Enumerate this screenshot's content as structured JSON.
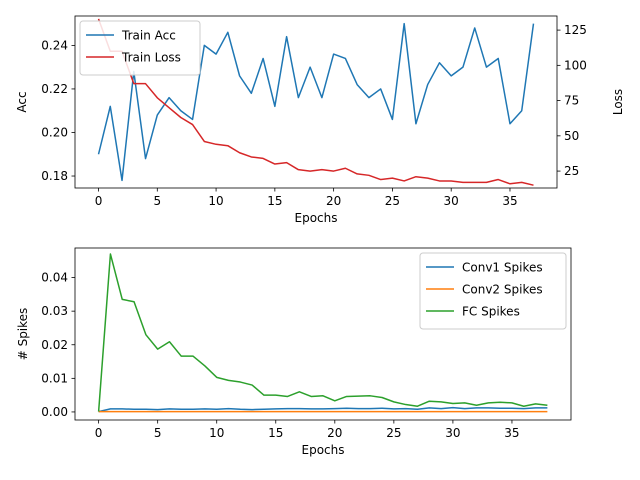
{
  "chart_data": [
    {
      "type": "line",
      "xlabel": "Epochs",
      "ylabel": "Acc",
      "y2label": "Loss",
      "xlim": [
        -2,
        39
      ],
      "ylim": [
        0.1745,
        0.2535
      ],
      "y2lim": [
        13,
        135
      ],
      "xticks": [
        0,
        5,
        10,
        15,
        20,
        25,
        30,
        35
      ],
      "yticks": [
        0.18,
        0.2,
        0.22,
        0.24
      ],
      "y2ticks": [
        25,
        50,
        75,
        100,
        125
      ],
      "legend": "top-left",
      "x": [
        0,
        1,
        2,
        3,
        4,
        5,
        6,
        7,
        8,
        9,
        10,
        11,
        12,
        13,
        14,
        15,
        16,
        17,
        18,
        19,
        20,
        21,
        22,
        23,
        24,
        25,
        26,
        27,
        28,
        29,
        30,
        31,
        32,
        33,
        34,
        35,
        36,
        37
      ],
      "series": [
        {
          "name": "Train Acc",
          "axis": "left",
          "color": "#1f77b4",
          "values": [
            0.19,
            0.212,
            0.178,
            0.228,
            0.188,
            0.208,
            0.216,
            0.21,
            0.206,
            0.24,
            0.236,
            0.246,
            0.226,
            0.218,
            0.234,
            0.212,
            0.244,
            0.216,
            0.23,
            0.216,
            0.236,
            0.234,
            0.222,
            0.216,
            0.22,
            0.206,
            0.25,
            0.204,
            0.222,
            0.232,
            0.226,
            0.23,
            0.248,
            0.23,
            0.234,
            0.204,
            0.21,
            0.25
          ]
        },
        {
          "name": "Train Loss",
          "axis": "right",
          "color": "#d62728",
          "values": [
            133,
            110,
            110,
            87,
            87,
            77,
            70,
            63,
            58,
            46,
            44,
            43,
            38,
            35,
            34,
            30,
            31,
            26,
            25,
            26,
            25,
            27,
            23,
            22,
            19,
            20,
            18,
            21,
            20,
            18,
            18,
            17,
            17,
            17,
            19,
            16,
            17,
            15
          ]
        }
      ]
    },
    {
      "type": "line",
      "xlabel": "Epochs",
      "ylabel": "# Spikes",
      "xlim": [
        -2,
        40
      ],
      "ylim": [
        -0.0024,
        0.0488
      ],
      "xticks": [
        0,
        5,
        10,
        15,
        20,
        25,
        30,
        35
      ],
      "yticks": [
        0.0,
        0.01,
        0.02,
        0.03,
        0.04
      ],
      "legend": "top-right",
      "x": [
        0,
        1,
        2,
        3,
        4,
        5,
        6,
        7,
        8,
        9,
        10,
        11,
        12,
        13,
        14,
        15,
        16,
        17,
        18,
        19,
        20,
        21,
        22,
        23,
        24,
        25,
        26,
        27,
        28,
        29,
        30,
        31,
        32,
        33,
        34,
        35,
        36,
        37,
        38
      ],
      "series": [
        {
          "name": "Conv1 Spikes",
          "color": "#1f77b4",
          "values": [
            0.0001,
            0.0009,
            0.0009,
            0.0008,
            0.0008,
            0.0007,
            0.0009,
            0.0008,
            0.0008,
            0.0009,
            0.0008,
            0.001,
            0.0008,
            0.0007,
            0.0008,
            0.0009,
            0.001,
            0.001,
            0.0009,
            0.0009,
            0.001,
            0.0011,
            0.001,
            0.001,
            0.0011,
            0.0009,
            0.001,
            0.0008,
            0.0012,
            0.001,
            0.0013,
            0.001,
            0.0012,
            0.0012,
            0.0011,
            0.0011,
            0.001,
            0.0012,
            0.0012
          ]
        },
        {
          "name": "Conv2 Spikes",
          "color": "#ff7f0e",
          "values": [
            0.0001,
            0.0001,
            0.0001,
            0.0001,
            0.0001,
            0.0001,
            0.0001,
            0.0001,
            0.0001,
            0.0001,
            0.0001,
            0.0001,
            0.0001,
            0.0001,
            0.0001,
            0.0001,
            0.0001,
            0.0001,
            0.0001,
            0.0001,
            0.0001,
            0.0001,
            0.0001,
            0.0001,
            0.0001,
            0.0001,
            0.0001,
            0.0001,
            0.0001,
            0.0001,
            0.0001,
            0.0001,
            0.0001,
            0.0001,
            0.0001,
            0.0001,
            0.0001,
            0.0001,
            0.0001
          ]
        },
        {
          "name": "FC Spikes",
          "color": "#2ca02c",
          "values": [
            0.0001,
            0.047,
            0.0335,
            0.0328,
            0.023,
            0.0187,
            0.0209,
            0.0166,
            0.0166,
            0.0137,
            0.0103,
            0.0094,
            0.0089,
            0.008,
            0.005,
            0.005,
            0.0046,
            0.006,
            0.0046,
            0.0048,
            0.0033,
            0.0046,
            0.0047,
            0.0048,
            0.0043,
            0.003,
            0.0022,
            0.0017,
            0.0032,
            0.003,
            0.0025,
            0.0027,
            0.002,
            0.0027,
            0.0029,
            0.0027,
            0.0017,
            0.0024,
            0.002
          ]
        }
      ]
    }
  ]
}
